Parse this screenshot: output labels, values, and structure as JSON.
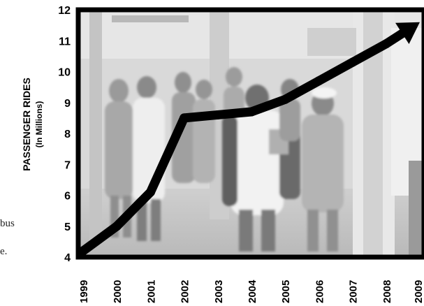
{
  "side_text": [
    "bus",
    "e."
  ],
  "chart_data": {
    "type": "line",
    "title": "",
    "xlabel": "",
    "ylabel": "PASSENGER RIDES",
    "ylabel_sub": "(In Millions)",
    "x": [
      "1999",
      "2000",
      "2001",
      "2002",
      "2003",
      "2004",
      "2005",
      "2006",
      "2007",
      "2008",
      "2009"
    ],
    "y_ticks": [
      4,
      5,
      6,
      7,
      8,
      9,
      10,
      11,
      12
    ],
    "ylim": [
      4,
      12
    ],
    "series": [
      {
        "values": [
          4.2,
          5.0,
          6.1,
          8.5,
          8.6,
          8.7,
          9.1,
          9.7,
          10.3,
          10.9,
          11.6
        ],
        "end_marker": "arrow"
      }
    ],
    "grid": false,
    "background": "photo of bus passengers at a transit station",
    "colors": {
      "line": "#000000",
      "frame": "#000000",
      "text": "#000000"
    }
  }
}
